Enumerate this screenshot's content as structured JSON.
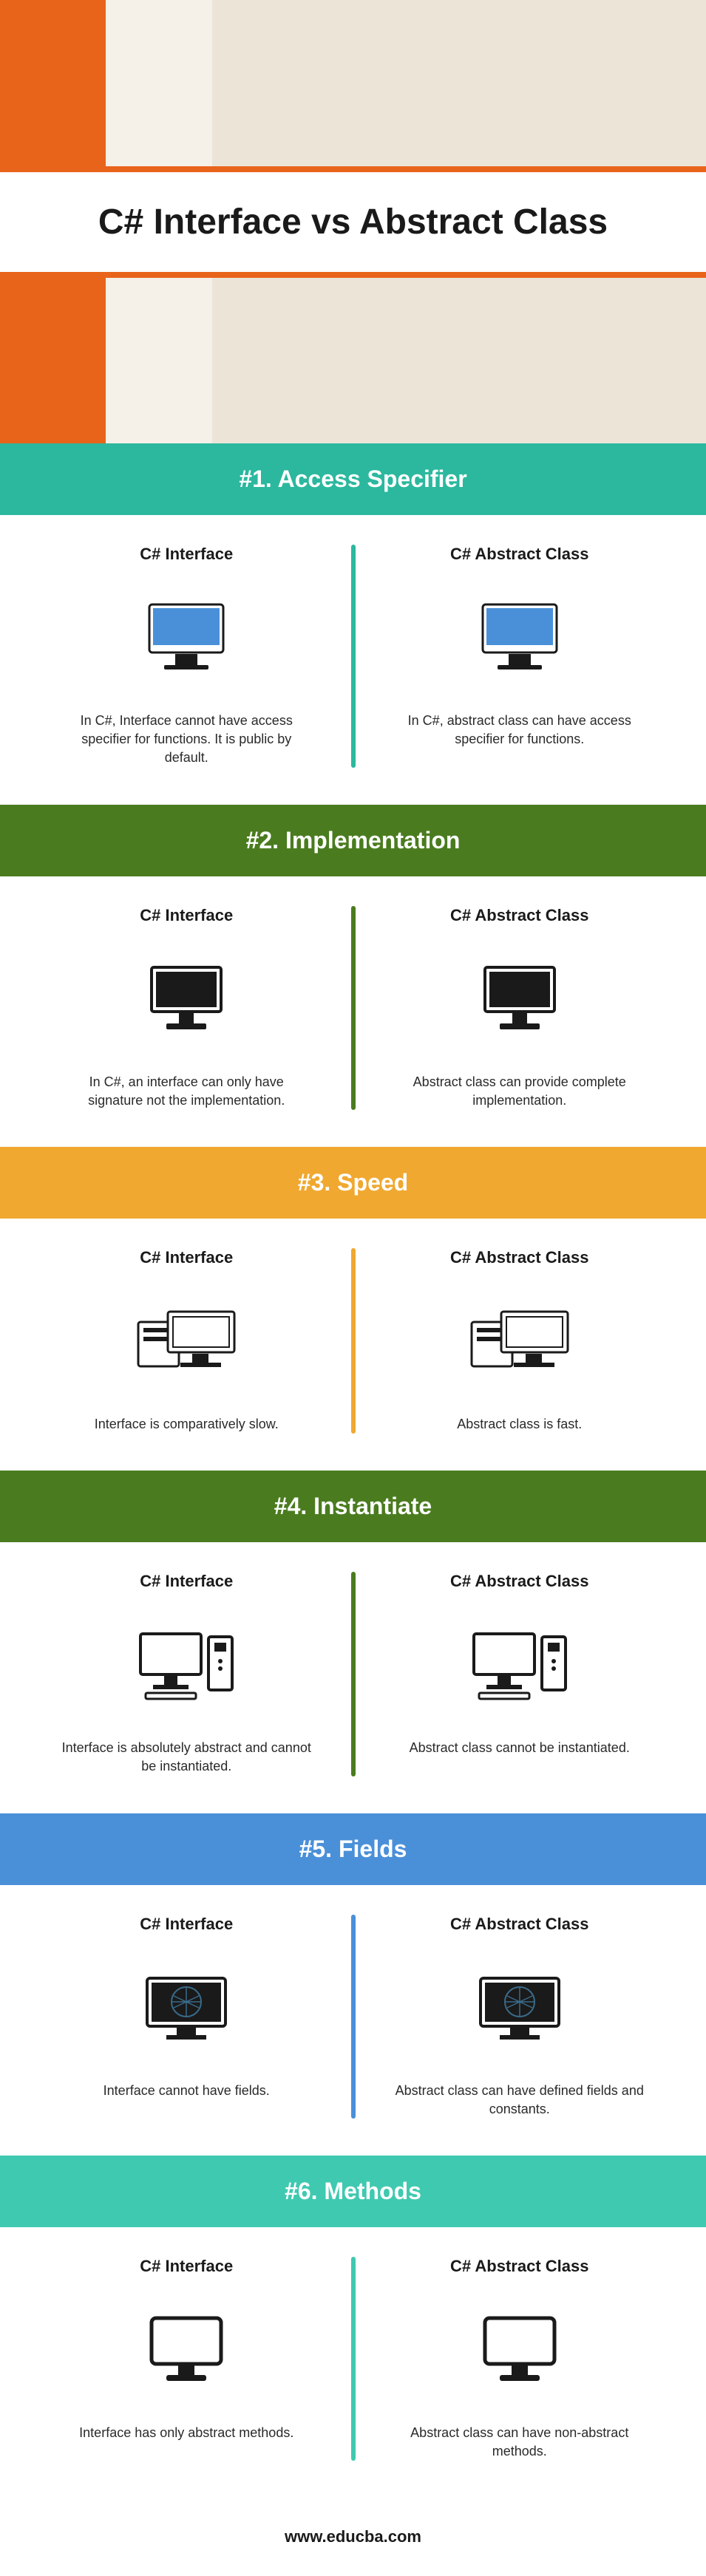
{
  "hero": {
    "title": "C# Interface vs Abstract Class"
  },
  "sections": [
    {
      "header": "#1. Access Specifier",
      "header_bg": "#2bb89e",
      "divider_color": "#2bb89e",
      "left_title": "C# Interface",
      "left_desc": "In C#, Interface cannot have access specifier for functions. It is public by default.",
      "right_title": "C# Abstract Class",
      "right_desc": "In C#, abstract class can have access specifier for functions.",
      "icon": "imac"
    },
    {
      "header": "#2. Implementation",
      "header_bg": "#4a7c1f",
      "divider_color": "#4a7c1f",
      "left_title": "C# Interface",
      "left_desc": "In C#, an interface can only have signature not the implementation.",
      "right_title": "C# Abstract Class",
      "right_desc": "Abstract class can provide complete implementation.",
      "icon": "monitor"
    },
    {
      "header": "#3. Speed",
      "header_bg": "#f0a830",
      "divider_color": "#f0a830",
      "left_title": "C# Interface",
      "left_desc": "Interface is comparatively slow.",
      "right_title": "C# Abstract Class",
      "right_desc": "Abstract class is fast.",
      "icon": "servers"
    },
    {
      "header": "#4. Instantiate",
      "header_bg": "#4a7c1f",
      "divider_color": "#4a7c1f",
      "left_title": "C# Interface",
      "left_desc": "Interface is absolutely abstract and cannot be instantiated.",
      "right_title": "C# Abstract Class",
      "right_desc": "Abstract class cannot be instantiated.",
      "icon": "desktop"
    },
    {
      "header": "#5. Fields",
      "header_bg": "#4a90d9",
      "divider_color": "#4a90d9",
      "left_title": "C# Interface",
      "left_desc": "Interface cannot have fields.",
      "right_title": "C# Abstract Class",
      "right_desc": "Abstract class can have defined fields and constants.",
      "icon": "globe"
    },
    {
      "header": "#6. Methods",
      "header_bg": "#3fc9b0",
      "divider_color": "#3fc9b0",
      "left_title": "C# Interface",
      "left_desc": "Interface has only abstract methods.",
      "right_title": "C# Abstract Class",
      "right_desc": "Abstract class can have non-abstract methods.",
      "icon": "screen"
    }
  ],
  "footer": {
    "url": "www.educba.com"
  },
  "colors": {
    "text": "#1a1a1a",
    "bg": "#ffffff"
  }
}
